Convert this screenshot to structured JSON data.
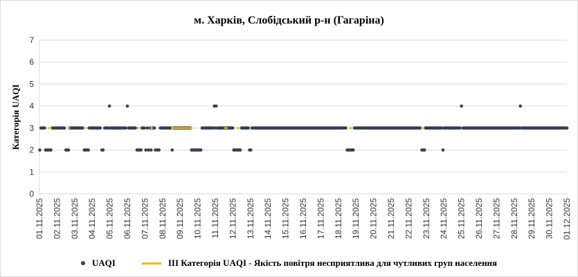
{
  "chart_data": {
    "type": "scatter",
    "title": "м. Харків, Слобідський р-н (Гагаріна)",
    "ylabel": "Категорія UAQI",
    "xlabel": "",
    "ylim": [
      0,
      7
    ],
    "yticks": [
      0,
      1,
      2,
      3,
      4,
      5,
      6,
      7
    ],
    "grid": "y",
    "legend_position": "bottom",
    "x_tick_labels": [
      "01.11.2025",
      "02.11.2025",
      "03.11.2025",
      "04.11.2025",
      "05.11.2025",
      "06.11.2025",
      "07.11.2025",
      "08.11.2025",
      "09.11.2025",
      "10.11.2025",
      "11.11.2025",
      "12.11.2025",
      "13.11.2025",
      "14.11.2025",
      "15.11.2025",
      "16.11.2025",
      "17.11.2025",
      "18.11.2025",
      "19.11.2025",
      "20.11.2025",
      "21.11.2025",
      "22.11.2025",
      "23.11.2025",
      "24.11.2025",
      "25.11.2025",
      "26.11.2025",
      "27.11.2025",
      "28.11.2025",
      "29.11.2025",
      "30.11.2025",
      "01.12.2025"
    ],
    "x_range_days": [
      0,
      30
    ],
    "series": [
      {
        "name": "UAQI",
        "kind": "points",
        "color": "#374151",
        "hourly_default": 3,
        "points": [
          {
            "day": 0.02,
            "value": 2
          },
          {
            "day": 0.35,
            "value": 2
          },
          {
            "day": 0.42,
            "value": 2
          },
          {
            "day": 0.5,
            "value": 2
          },
          {
            "day": 0.58,
            "value": 2
          },
          {
            "day": 0.65,
            "value": 2
          },
          {
            "day": 1.5,
            "value": 2
          },
          {
            "day": 1.58,
            "value": 2
          },
          {
            "day": 1.65,
            "value": 2
          },
          {
            "day": 2.55,
            "value": 2
          },
          {
            "day": 2.62,
            "value": 2
          },
          {
            "day": 2.7,
            "value": 2
          },
          {
            "day": 2.78,
            "value": 2
          },
          {
            "day": 3.55,
            "value": 2
          },
          {
            "day": 3.62,
            "value": 2
          },
          {
            "day": 3.98,
            "value": 4
          },
          {
            "day": 5.0,
            "value": 4
          },
          {
            "day": 5.55,
            "value": 2
          },
          {
            "day": 5.62,
            "value": 2
          },
          {
            "day": 5.7,
            "value": 2
          },
          {
            "day": 5.78,
            "value": 2
          },
          {
            "day": 6.05,
            "value": 2
          },
          {
            "day": 6.2,
            "value": 2
          },
          {
            "day": 6.35,
            "value": 2
          },
          {
            "day": 6.6,
            "value": 2
          },
          {
            "day": 6.7,
            "value": 2
          },
          {
            "day": 6.8,
            "value": 2
          },
          {
            "day": 7.55,
            "value": 2
          },
          {
            "day": 8.65,
            "value": 2
          },
          {
            "day": 8.72,
            "value": 2
          },
          {
            "day": 8.8,
            "value": 2
          },
          {
            "day": 8.88,
            "value": 2
          },
          {
            "day": 8.95,
            "value": 2
          },
          {
            "day": 9.02,
            "value": 2
          },
          {
            "day": 9.1,
            "value": 2
          },
          {
            "day": 9.18,
            "value": 2
          },
          {
            "day": 9.95,
            "value": 4
          },
          {
            "day": 10.05,
            "value": 4
          },
          {
            "day": 11.05,
            "value": 2
          },
          {
            "day": 11.12,
            "value": 2
          },
          {
            "day": 11.2,
            "value": 2
          },
          {
            "day": 11.28,
            "value": 2
          },
          {
            "day": 11.35,
            "value": 2
          },
          {
            "day": 11.42,
            "value": 2
          },
          {
            "day": 11.95,
            "value": 2
          },
          {
            "day": 12.02,
            "value": 2
          },
          {
            "day": 17.5,
            "value": 2
          },
          {
            "day": 17.57,
            "value": 2
          },
          {
            "day": 17.64,
            "value": 2
          },
          {
            "day": 17.71,
            "value": 2
          },
          {
            "day": 17.78,
            "value": 2
          },
          {
            "day": 17.85,
            "value": 2
          },
          {
            "day": 21.75,
            "value": 2
          },
          {
            "day": 21.82,
            "value": 2
          },
          {
            "day": 21.9,
            "value": 2
          },
          {
            "day": 22.95,
            "value": 2
          },
          {
            "day": 24.0,
            "value": 4
          },
          {
            "day": 27.35,
            "value": 4
          }
        ]
      },
      {
        "name": "III Категорія UAQI - Якість повітря несприятлива для чутливих груп населення",
        "kind": "line",
        "color": "#f5b800",
        "value": 3,
        "segments": [
          [
            0.45,
            0.7
          ],
          [
            1.6,
            1.75
          ],
          [
            2.6,
            2.75
          ],
          [
            5.55,
            5.7
          ],
          [
            6.3,
            6.45
          ],
          [
            7.5,
            8.7
          ],
          [
            10.5,
            10.7
          ],
          [
            11.2,
            11.4
          ],
          [
            17.6,
            17.8
          ],
          [
            21.7,
            21.85
          ]
        ]
      }
    ]
  },
  "legend": {
    "items": [
      {
        "label": "UAQI"
      },
      {
        "label": "III Категорія UAQI - Якість повітря несприятлива для чутливих груп населення"
      }
    ]
  }
}
